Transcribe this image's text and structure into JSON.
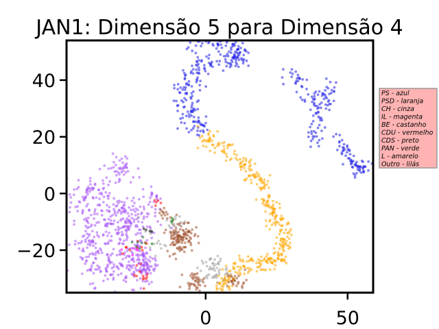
{
  "chart_data": {
    "type": "scatter",
    "title": "JAN1: Dimensão 5 para Dimensão 4",
    "xlabel": "",
    "ylabel": "",
    "xlim": [
      -49,
      59
    ],
    "ylim": [
      -35,
      54
    ],
    "x_ticks": [
      0,
      50
    ],
    "y_ticks": [
      -20,
      0,
      20,
      40
    ],
    "x_tick_labels": [
      "0",
      "50"
    ],
    "y_tick_labels": [
      "−20",
      "0",
      "20",
      "40"
    ],
    "grid": false,
    "legend_placement": "right, outside plot, top",
    "legend_entries": [
      "PS - azul",
      "PSD - laranja",
      "CH - cinza",
      "IL - magenta",
      "BE - castanho",
      "CDU - vermelho",
      "CDS - preto",
      "PAN - verde",
      "L - amarelo",
      "Outro - lilás"
    ],
    "colors": {
      "PS": "#1f1fe6",
      "PSD": "#ffa500",
      "CH": "#a0a0a0",
      "IL": "#ff00ff",
      "BE": "#a0522d",
      "CDU": "#ff0000",
      "CDS": "#000000",
      "PAN": "#228b22",
      "L": "#ffff00",
      "Outro": "#a855f7",
      "legend_bg": "#ffb3b3",
      "legend_border": "#999999"
    },
    "series": [
      {
        "name": "PS - azul",
        "key": "PS",
        "clusters": [
          {
            "path": [
              [
                -6,
                52
              ],
              [
                2,
                54
              ],
              [
                9,
                52
              ],
              [
                13,
                48
              ],
              [
                10,
                47
              ],
              [
                3,
                48
              ],
              [
                -3,
                45
              ],
              [
                -7,
                39
              ],
              [
                -7,
                32
              ],
              [
                -4,
                25
              ],
              [
                -1,
                22
              ]
            ],
            "spread": 2.0,
            "n": 260
          },
          {
            "path": [
              [
                30,
                42
              ],
              [
                33,
                38
              ],
              [
                37,
                35
              ],
              [
                40,
                33
              ],
              [
                42,
                35
              ],
              [
                44,
                37
              ],
              [
                42,
                31
              ],
              [
                39,
                27
              ],
              [
                39,
                22
              ],
              [
                38,
                18
              ]
            ],
            "spread": 1.6,
            "n": 110
          },
          {
            "path": [
              [
                46,
                21
              ],
              [
                48,
                16
              ],
              [
                49,
                13
              ],
              [
                52,
                11
              ],
              [
                54,
                8
              ],
              [
                57,
                10
              ]
            ],
            "spread": 1.4,
            "n": 70
          }
        ]
      },
      {
        "name": "PSD - laranja",
        "key": "PSD",
        "clusters": [
          {
            "path": [
              [
                -1,
                21
              ],
              [
                3,
                18
              ],
              [
                8,
                15
              ],
              [
                14,
                9
              ],
              [
                18,
                6
              ],
              [
                20,
                3
              ],
              [
                22,
                -2
              ],
              [
                23,
                -5
              ],
              [
                25,
                -9
              ],
              [
                27,
                -12
              ],
              [
                28,
                -16
              ],
              [
                27,
                -20
              ],
              [
                25,
                -23
              ],
              [
                21,
                -25
              ],
              [
                16,
                -25
              ],
              [
                12,
                -26
              ],
              [
                9,
                -29
              ],
              [
                7,
                -31
              ],
              [
                5,
                -33
              ]
            ],
            "spread": 1.6,
            "n": 380
          }
        ]
      },
      {
        "name": "Outro - lilás",
        "key": "Outro",
        "clusters": [
          {
            "center": [
              -28,
              -10
            ],
            "w": 9,
            "h": 9,
            "n": 200
          },
          {
            "center": [
              -41,
              -18
            ],
            "w": 5,
            "h": 10,
            "n": 90
          },
          {
            "center": [
              -41,
              -3
            ],
            "w": 6,
            "h": 6,
            "n": 60
          },
          {
            "center": [
              -30,
              9
            ],
            "w": 5,
            "h": 4,
            "n": 40
          },
          {
            "center": [
              -43,
              2
            ],
            "w": 4,
            "h": 3,
            "n": 20
          },
          {
            "center": [
              -24,
              -24
            ],
            "w": 6,
            "h": 7,
            "n": 110
          },
          {
            "center": [
              -33,
              -27
            ],
            "w": 6,
            "h": 5,
            "n": 50
          },
          {
            "center": [
              -18,
              -1
            ],
            "w": 2,
            "h": 2,
            "n": 12
          },
          {
            "center": [
              -21,
              -26
            ],
            "w": 3,
            "h": 5,
            "n": 30
          }
        ]
      },
      {
        "name": "BE - castanho",
        "key": "BE",
        "clusters": [
          {
            "center": [
              -9,
              -15
            ],
            "w": 4,
            "h": 5,
            "n": 120
          },
          {
            "center": [
              -4,
              -31
            ],
            "w": 3,
            "h": 2.5,
            "n": 40
          },
          {
            "center": [
              11,
              -31
            ],
            "w": 3,
            "h": 2.5,
            "n": 25
          },
          {
            "center": [
              -15,
              -7
            ],
            "w": 2,
            "h": 2,
            "n": 12
          }
        ]
      },
      {
        "name": "CH - cinza",
        "key": "CH",
        "clusters": [
          {
            "center": [
              3,
              -27
            ],
            "w": 4,
            "h": 4,
            "n": 50
          },
          {
            "center": [
              -11,
              -10
            ],
            "w": 3,
            "h": 3,
            "n": 15
          },
          {
            "center": [
              -19,
              -17
            ],
            "w": 4,
            "h": 4,
            "n": 15
          }
        ]
      },
      {
        "name": "CDU - vermelho",
        "key": "CDU",
        "clusters": [
          {
            "center": [
              -22,
              -29
            ],
            "w": 2.5,
            "h": 3,
            "n": 12
          },
          {
            "center": [
              -22,
              -18
            ],
            "w": 2,
            "h": 2,
            "n": 6
          },
          {
            "center": [
              -17,
              -4
            ],
            "w": 1.5,
            "h": 1.5,
            "n": 5
          },
          {
            "center": [
              -28,
              -20
            ],
            "w": 1.5,
            "h": 1.5,
            "n": 4
          }
        ]
      },
      {
        "name": "PAN - verde",
        "key": "PAN",
        "clusters": [
          {
            "center": [
              -24,
              -17
            ],
            "w": 3,
            "h": 3,
            "n": 8
          },
          {
            "center": [
              -12,
              -9
            ],
            "w": 2,
            "h": 2,
            "n": 4
          }
        ]
      },
      {
        "name": "CDS - preto",
        "key": "CDS",
        "clusters": [
          {
            "center": [
              -20,
              -14
            ],
            "w": 2,
            "h": 2,
            "n": 4
          }
        ]
      },
      {
        "name": "IL - magenta",
        "key": "IL",
        "clusters": [
          {
            "center": [
              -26,
              -20
            ],
            "w": 3,
            "h": 3,
            "n": 5
          }
        ]
      }
    ]
  }
}
